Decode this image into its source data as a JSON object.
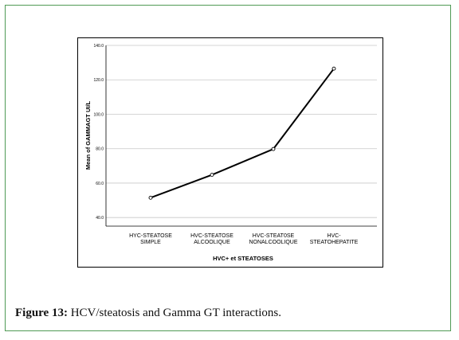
{
  "chart_data": {
    "type": "line",
    "categories": [
      [
        "HYC-STEATOSE",
        "SIMPLE"
      ],
      [
        "HVC-STEATOSE",
        "ALCOOLIQUE"
      ],
      [
        "HVC-STEAT0SE",
        "NONALCOOLIQUE"
      ],
      [
        "HVC-",
        "STEATOHEPATITE"
      ]
    ],
    "values": [
      51.5,
      64.8,
      79.8,
      126.5
    ],
    "xlabel": "HVC+ et STEATOSES",
    "ylabel": "Mean of GAMMAGT UI/L",
    "ylim": [
      35,
      140
    ],
    "yticks": [
      40.0,
      60.0,
      80.0,
      100.0,
      120.0,
      140.0
    ],
    "ytick_labels": [
      "40.0",
      "60.0",
      "80.0",
      "100.0",
      "120.0",
      "140.0"
    ],
    "grid": true,
    "line_color": "#000000",
    "grid_color": "#c8c8c8",
    "marker": "circle"
  },
  "caption": {
    "label": "Figure 13:",
    "text": " HCV/steatosis and Gamma GT interactions."
  },
  "colors": {
    "frame_border": "#4f9a55"
  }
}
